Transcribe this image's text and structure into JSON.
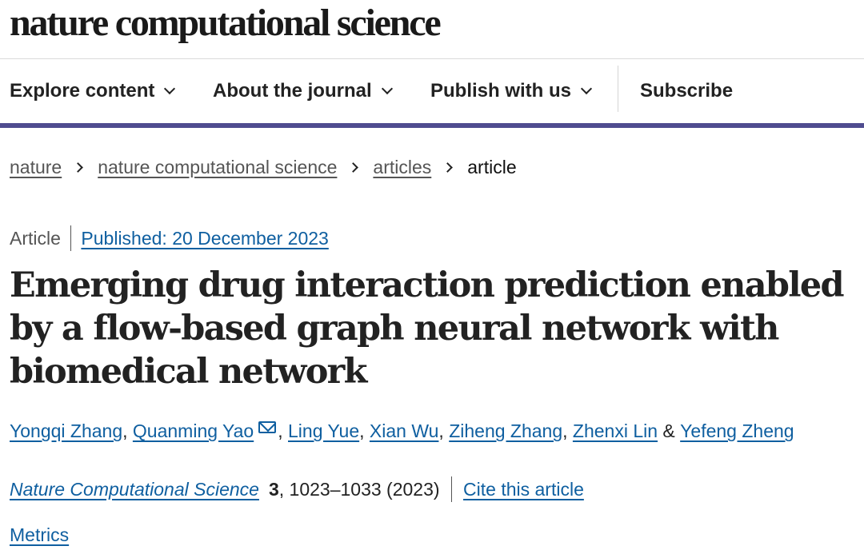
{
  "header": {
    "logo": "nature computational science"
  },
  "nav": {
    "items": [
      {
        "label": "Explore content",
        "dropdown": true
      },
      {
        "label": "About the journal",
        "dropdown": true
      },
      {
        "label": "Publish with us",
        "dropdown": true
      },
      {
        "label": "Subscribe",
        "dropdown": false
      }
    ]
  },
  "breadcrumb": {
    "items": [
      "nature",
      "nature computational science",
      "articles"
    ],
    "current": "article"
  },
  "article": {
    "type": "Article",
    "published": "Published: 20 December 2023",
    "title": "Emerging drug interaction prediction enabled by a flow-based graph neural network with biomedical network",
    "authors": [
      "Yongqi Zhang",
      "Quanming Yao",
      "Ling Yue",
      "Xian Wu",
      "Ziheng Zhang",
      "Zhenxi Lin",
      "Yefeng Zheng"
    ],
    "author_sep": ", ",
    "author_last_sep": " & ",
    "journal": "Nature Computational Science",
    "volume": "3",
    "pages_year": ", 1023–1033 (2023)",
    "cite_label": "Cite this article",
    "metrics_label": "Metrics"
  },
  "colors": {
    "accent": "#4f4c8f",
    "link": "#0f5fa0"
  },
  "icons": {
    "chevron": "chevron-down-icon",
    "mail": "mail-icon"
  }
}
